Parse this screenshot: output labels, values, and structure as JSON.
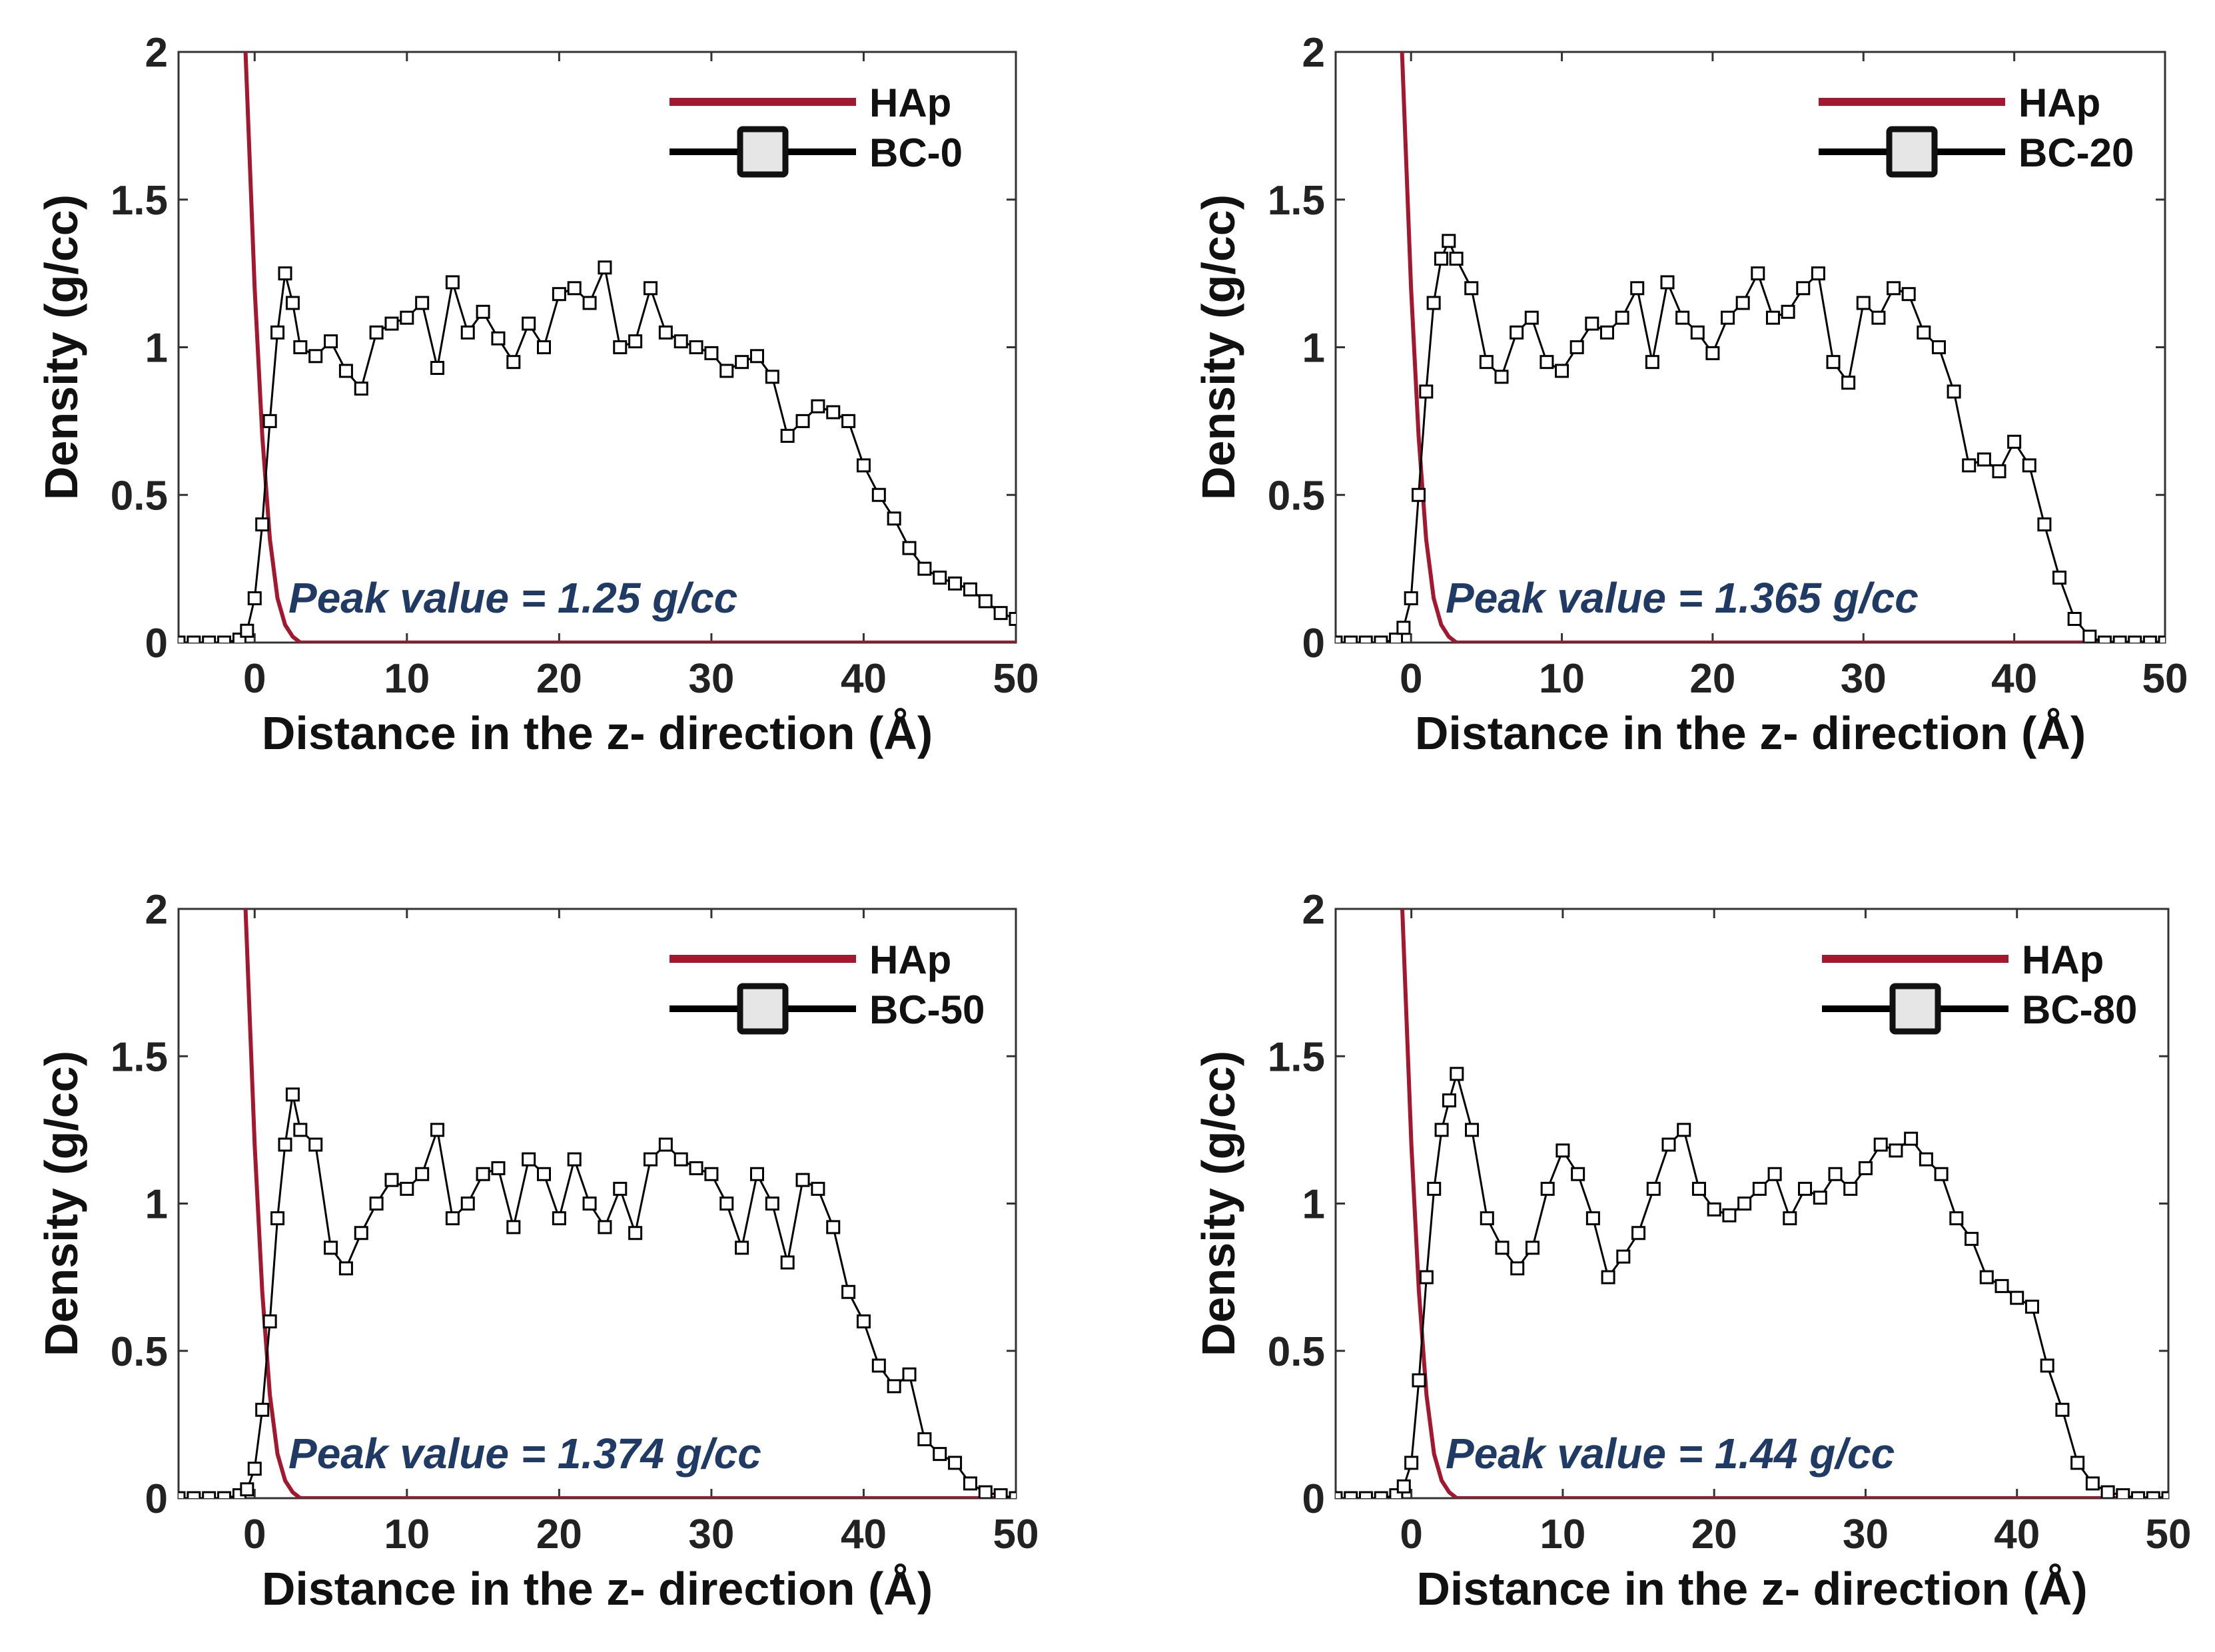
{
  "colors": {
    "hap": "#a3182e",
    "bc": "#000000",
    "marker_fill": "#ffffff",
    "annotation": "#1f3a64"
  },
  "chart_data": [
    {
      "type": "line",
      "xlabel": "Distance in the z- direction (Å)",
      "ylabel": "Density (g/cc)",
      "xlim": [
        -5,
        50
      ],
      "ylim": [
        0,
        2
      ],
      "xticks": [
        "0",
        "10",
        "20",
        "30",
        "40",
        "50"
      ],
      "yticks": [
        "0",
        "0.5",
        "1",
        "1.5",
        "2"
      ],
      "grid": false,
      "legend_position": "top-right",
      "annotation": "Peak value = 1.25 g/cc",
      "series": [
        {
          "name": "HAp",
          "style": "line",
          "decay": 0.75,
          "x": [
            -0.6,
            0,
            0.5,
            1,
            1.5,
            2,
            2.5,
            3,
            50
          ],
          "y": [
            2.0,
            1.2,
            0.7,
            0.35,
            0.15,
            0.06,
            0.02,
            0.0,
            0.0
          ]
        },
        {
          "name": "BC-0",
          "style": "line-square-markers",
          "x": [
            -5,
            -4,
            -3,
            -2,
            -1,
            -0.5,
            0,
            0.5,
            1,
            1.5,
            2,
            2.5,
            3,
            4,
            5,
            6,
            7,
            8,
            9,
            10,
            11,
            12,
            13,
            14,
            15,
            16,
            17,
            18,
            19,
            20,
            21,
            22,
            23,
            24,
            25,
            26,
            27,
            28,
            29,
            30,
            31,
            32,
            33,
            34,
            35,
            36,
            37,
            38,
            39,
            40,
            41,
            42,
            43,
            44,
            45,
            46,
            47,
            48,
            49,
            50
          ],
          "y": [
            0,
            0,
            0,
            0,
            0.01,
            0.04,
            0.15,
            0.4,
            0.75,
            1.05,
            1.25,
            1.15,
            1.0,
            0.97,
            1.02,
            0.92,
            0.86,
            1.05,
            1.08,
            1.1,
            1.15,
            0.93,
            1.22,
            1.05,
            1.12,
            1.03,
            0.95,
            1.08,
            1.0,
            1.18,
            1.2,
            1.15,
            1.27,
            1.0,
            1.02,
            1.2,
            1.05,
            1.02,
            1.0,
            0.98,
            0.92,
            0.95,
            0.97,
            0.9,
            0.7,
            0.75,
            0.8,
            0.78,
            0.75,
            0.6,
            0.5,
            0.42,
            0.32,
            0.25,
            0.22,
            0.2,
            0.18,
            0.14,
            0.1,
            0.08
          ]
        }
      ]
    },
    {
      "type": "line",
      "xlabel": "Distance in the z- direction (Å)",
      "ylabel": "Density (g/cc)",
      "xlim": [
        -5,
        50
      ],
      "ylim": [
        0,
        2
      ],
      "xticks": [
        "0",
        "10",
        "20",
        "30",
        "40",
        "50"
      ],
      "yticks": [
        "0",
        "0.5",
        "1",
        "1.5",
        "2"
      ],
      "grid": false,
      "legend_position": "top-right",
      "annotation": "Peak value = 1.365 g/cc",
      "series": [
        {
          "name": "HAp",
          "style": "line",
          "decay": 0.75,
          "x": [
            -0.6,
            0,
            0.5,
            1,
            1.5,
            2,
            2.5,
            3,
            50
          ],
          "y": [
            2.0,
            1.2,
            0.7,
            0.35,
            0.15,
            0.06,
            0.02,
            0.0,
            0.0
          ]
        },
        {
          "name": "BC-20",
          "style": "line-square-markers",
          "x": [
            -5,
            -4,
            -3,
            -2,
            -1,
            -0.5,
            0,
            0.5,
            1,
            1.5,
            2,
            2.5,
            3,
            4,
            5,
            6,
            7,
            8,
            9,
            10,
            11,
            12,
            13,
            14,
            15,
            16,
            17,
            18,
            19,
            20,
            21,
            22,
            23,
            24,
            25,
            26,
            27,
            28,
            29,
            30,
            31,
            32,
            33,
            34,
            35,
            36,
            37,
            38,
            39,
            40,
            41,
            42,
            43,
            44,
            45,
            46,
            47,
            48,
            49,
            50
          ],
          "y": [
            0,
            0,
            0,
            0,
            0.01,
            0.05,
            0.15,
            0.5,
            0.85,
            1.15,
            1.3,
            1.36,
            1.3,
            1.2,
            0.95,
            0.9,
            1.05,
            1.1,
            0.95,
            0.92,
            1.0,
            1.08,
            1.05,
            1.1,
            1.2,
            0.95,
            1.22,
            1.1,
            1.05,
            0.98,
            1.1,
            1.15,
            1.25,
            1.1,
            1.12,
            1.2,
            1.25,
            0.95,
            0.88,
            1.15,
            1.1,
            1.2,
            1.18,
            1.05,
            1.0,
            0.85,
            0.6,
            0.62,
            0.58,
            0.68,
            0.6,
            0.4,
            0.22,
            0.08,
            0.02,
            0.0,
            0.0,
            0.0,
            0.0,
            0.0
          ]
        }
      ]
    },
    {
      "type": "line",
      "xlabel": "Distance in the z- direction (Å)",
      "ylabel": "Density (g/cc)",
      "xlim": [
        -5,
        50
      ],
      "ylim": [
        0,
        2
      ],
      "xticks": [
        "0",
        "10",
        "20",
        "30",
        "40",
        "50"
      ],
      "yticks": [
        "0",
        "0.5",
        "1",
        "1.5",
        "2"
      ],
      "grid": false,
      "legend_position": "top-right",
      "annotation": "Peak value = 1.374 g/cc",
      "series": [
        {
          "name": "HAp",
          "style": "line",
          "decay": 0.75,
          "x": [
            -0.6,
            0,
            0.5,
            1,
            1.5,
            2,
            2.5,
            3,
            50
          ],
          "y": [
            2.0,
            1.2,
            0.7,
            0.35,
            0.15,
            0.06,
            0.02,
            0.0,
            0.0
          ]
        },
        {
          "name": "BC-50",
          "style": "line-square-markers",
          "x": [
            -5,
            -4,
            -3,
            -2,
            -1,
            -0.5,
            0,
            0.5,
            1,
            1.5,
            2,
            2.5,
            3,
            4,
            5,
            6,
            7,
            8,
            9,
            10,
            11,
            12,
            13,
            14,
            15,
            16,
            17,
            18,
            19,
            20,
            21,
            22,
            23,
            24,
            25,
            26,
            27,
            28,
            29,
            30,
            31,
            32,
            33,
            34,
            35,
            36,
            37,
            38,
            39,
            40,
            41,
            42,
            43,
            44,
            45,
            46,
            47,
            48,
            49,
            50
          ],
          "y": [
            0,
            0,
            0,
            0,
            0.01,
            0.03,
            0.1,
            0.3,
            0.6,
            0.95,
            1.2,
            1.37,
            1.25,
            1.2,
            0.85,
            0.78,
            0.9,
            1.0,
            1.08,
            1.05,
            1.1,
            1.25,
            0.95,
            1.0,
            1.1,
            1.12,
            0.92,
            1.15,
            1.1,
            0.95,
            1.15,
            1.0,
            0.92,
            1.05,
            0.9,
            1.15,
            1.2,
            1.15,
            1.12,
            1.1,
            1.0,
            0.85,
            1.1,
            1.0,
            0.8,
            1.08,
            1.05,
            0.92,
            0.7,
            0.6,
            0.45,
            0.38,
            0.42,
            0.2,
            0.15,
            0.12,
            0.05,
            0.02,
            0.01,
            0.0
          ]
        }
      ]
    },
    {
      "type": "line",
      "xlabel": "Distance in the z- direction (Å)",
      "ylabel": "Density (g/cc)",
      "xlim": [
        -5,
        50
      ],
      "ylim": [
        0,
        2
      ],
      "xticks": [
        "0",
        "10",
        "20",
        "30",
        "40",
        "50"
      ],
      "yticks": [
        "0",
        "0.5",
        "1",
        "1.5",
        "2"
      ],
      "grid": false,
      "legend_position": "top-right",
      "annotation": "Peak value = 1.44 g/cc",
      "series": [
        {
          "name": "HAp",
          "style": "line",
          "decay": 0.75,
          "x": [
            -0.6,
            0,
            0.5,
            1,
            1.5,
            2,
            2.5,
            3,
            50
          ],
          "y": [
            2.0,
            1.2,
            0.7,
            0.35,
            0.15,
            0.06,
            0.02,
            0.0,
            0.0
          ]
        },
        {
          "name": "BC-80",
          "style": "line-square-markers",
          "x": [
            -5,
            -4,
            -3,
            -2,
            -1,
            -0.5,
            0,
            0.5,
            1,
            1.5,
            2,
            2.5,
            3,
            4,
            5,
            6,
            7,
            8,
            9,
            10,
            11,
            12,
            13,
            14,
            15,
            16,
            17,
            18,
            19,
            20,
            21,
            22,
            23,
            24,
            25,
            26,
            27,
            28,
            29,
            30,
            31,
            32,
            33,
            34,
            35,
            36,
            37,
            38,
            39,
            40,
            41,
            42,
            43,
            44,
            45,
            46,
            47,
            48,
            49,
            50
          ],
          "y": [
            0,
            0,
            0,
            0,
            0.01,
            0.04,
            0.12,
            0.4,
            0.75,
            1.05,
            1.25,
            1.35,
            1.44,
            1.25,
            0.95,
            0.85,
            0.78,
            0.85,
            1.05,
            1.18,
            1.1,
            0.95,
            0.75,
            0.82,
            0.9,
            1.05,
            1.2,
            1.25,
            1.05,
            0.98,
            0.96,
            1.0,
            1.05,
            1.1,
            0.95,
            1.05,
            1.02,
            1.1,
            1.05,
            1.12,
            1.2,
            1.18,
            1.22,
            1.15,
            1.1,
            0.95,
            0.88,
            0.75,
            0.72,
            0.68,
            0.65,
            0.45,
            0.3,
            0.12,
            0.05,
            0.02,
            0.01,
            0.0,
            0.0,
            0.0
          ]
        }
      ]
    }
  ]
}
